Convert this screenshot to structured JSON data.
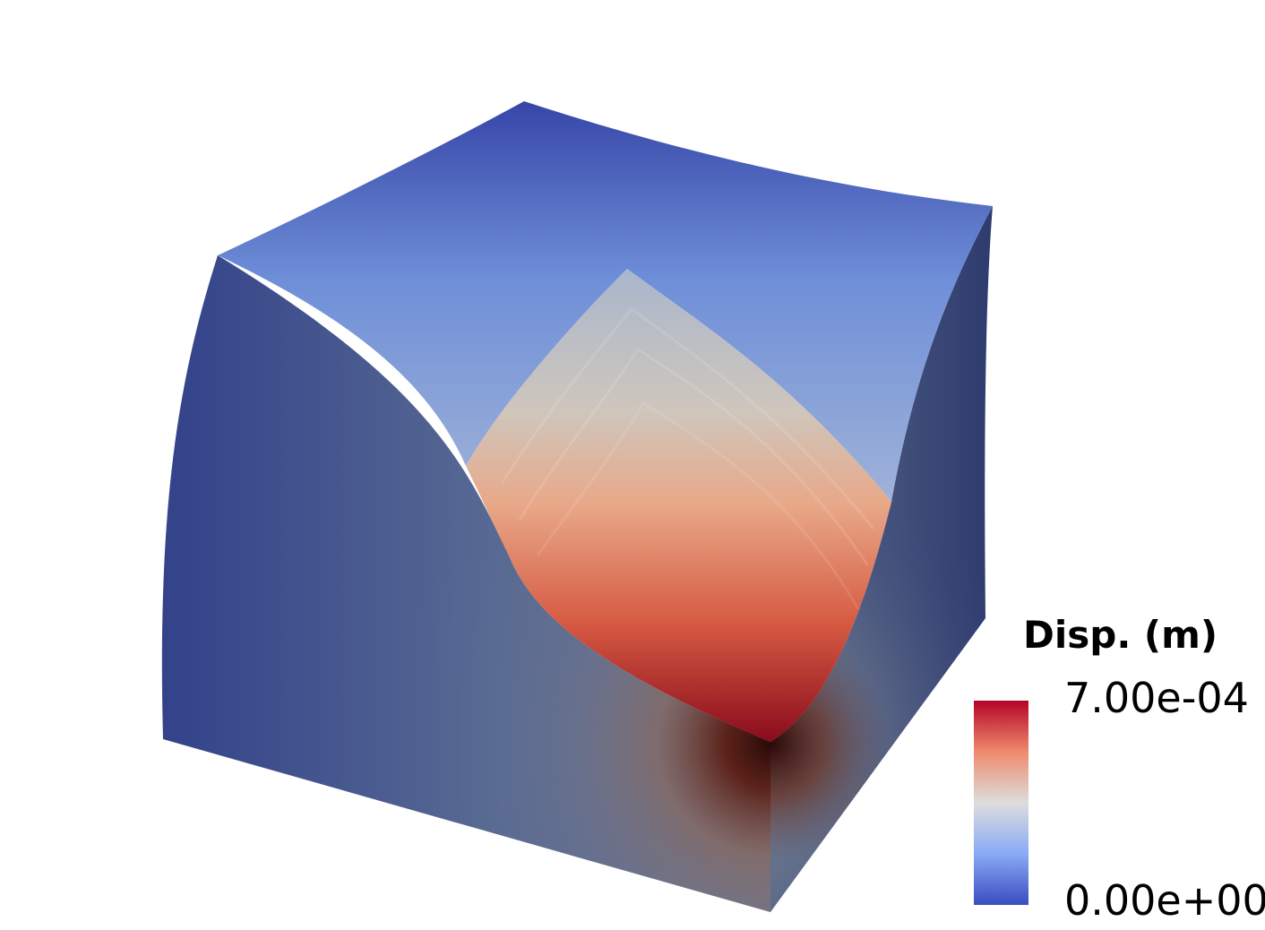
{
  "legend": {
    "title": "Disp. (m)",
    "max_label": "7.00e-04",
    "min_label": "0.00e+00",
    "colormap": "Cool to Warm",
    "colors": {
      "low": "#3b4cc0",
      "mid": "#dddddd",
      "high": "#b40426"
    }
  },
  "colors": {
    "background": "#ffffff"
  }
}
